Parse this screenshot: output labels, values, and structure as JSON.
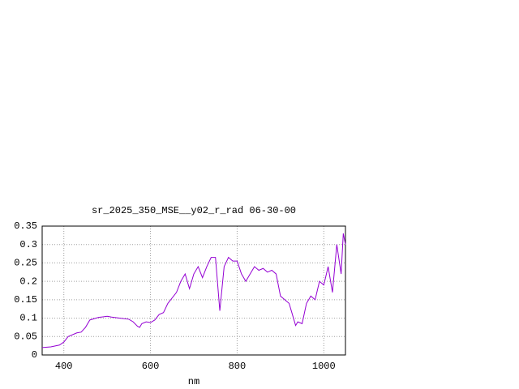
{
  "chart_data": {
    "type": "line",
    "title": "sr_2025_350_MSE__y02_r_rad 06-30-00",
    "x_label": "nm",
    "x": [
      350,
      370,
      390,
      400,
      410,
      430,
      440,
      450,
      460,
      480,
      500,
      510,
      530,
      550,
      560,
      570,
      575,
      580,
      590,
      600,
      610,
      620,
      630,
      640,
      660,
      670,
      680,
      690,
      700,
      710,
      720,
      730,
      740,
      750,
      760,
      770,
      780,
      790,
      800,
      810,
      820,
      830,
      840,
      850,
      860,
      870,
      880,
      890,
      900,
      910,
      920,
      930,
      935,
      940,
      950,
      960,
      970,
      980,
      990,
      1000,
      1010,
      1020,
      1030,
      1040,
      1045,
      1050
    ],
    "series": [
      {
        "color": "#9400d3",
        "values": [
          0.02,
          0.022,
          0.027,
          0.035,
          0.05,
          0.06,
          0.062,
          0.075,
          0.095,
          0.102,
          0.105,
          0.103,
          0.1,
          0.097,
          0.09,
          0.078,
          0.075,
          0.085,
          0.09,
          0.088,
          0.095,
          0.11,
          0.115,
          0.14,
          0.17,
          0.2,
          0.22,
          0.18,
          0.22,
          0.24,
          0.21,
          0.24,
          0.265,
          0.265,
          0.12,
          0.24,
          0.265,
          0.255,
          0.255,
          0.22,
          0.2,
          0.22,
          0.24,
          0.23,
          0.235,
          0.225,
          0.23,
          0.22,
          0.16,
          0.15,
          0.14,
          0.1,
          0.08,
          0.09,
          0.085,
          0.14,
          0.16,
          0.15,
          0.2,
          0.19,
          0.24,
          0.17,
          0.3,
          0.22,
          0.33,
          0.3
        ]
      }
    ],
    "xlim": [
      350,
      1050
    ],
    "xticks": [
      400,
      600,
      800,
      1000
    ],
    "ylim": [
      0,
      0.35
    ],
    "yticks": [
      0,
      0.05,
      0.1,
      0.15,
      0.2,
      0.25,
      0.3,
      0.35
    ],
    "grid": true
  }
}
